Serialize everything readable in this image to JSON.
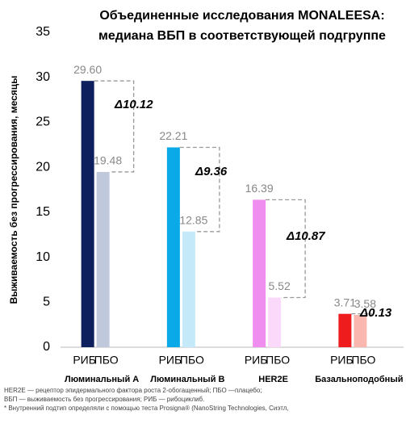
{
  "chart_data": {
    "type": "bar",
    "title": [
      "Объединенные исследования MONALEESA:",
      "медиана ВБП в соответствующей подгруппе"
    ],
    "y_label": "Выживаемость без прогрессирования, месяцы",
    "categories": [
      "Люминальный A",
      "Люминальный B",
      "HER2E",
      "Базальноподобный"
    ],
    "series": [
      {
        "name": "РИБ",
        "colors": [
          "#0d1f5c",
          "#0aa9e8",
          "#f08ef0",
          "#ee1c1c"
        ],
        "values": [
          29.6,
          22.21,
          16.39,
          3.71
        ],
        "value_labels": [
          "29.60",
          "22.21",
          "16.39",
          "3.71"
        ]
      },
      {
        "name": "ПБО",
        "colors": [
          "#c0c8dc",
          "#c4eaf9",
          "#fbd9fb",
          "#f9b7b0"
        ],
        "values": [
          19.48,
          12.85,
          5.52,
          3.58
        ],
        "value_labels": [
          "19.48",
          "12.85",
          "5.52",
          "3.58"
        ]
      }
    ],
    "annotations": [
      "Δ10.12",
      "Δ9.36",
      "Δ10.87",
      "Δ0.13"
    ],
    "ylim": [
      0,
      35
    ],
    "yticks": [
      0,
      5,
      10,
      15,
      20,
      25,
      30,
      35
    ],
    "grid": false,
    "footnotes": [
      "HER2E — рецептор эпидермального фактора роста 2-обогащенный; ПБО —плацебо;",
      "ВБП — выживаемость без прогрессирования; РИБ — рибоциклиб.",
      "* Внутренний подтип определяли с помощью теста Prosigna® (NanoString Technologies, Сиэтл,"
    ]
  }
}
